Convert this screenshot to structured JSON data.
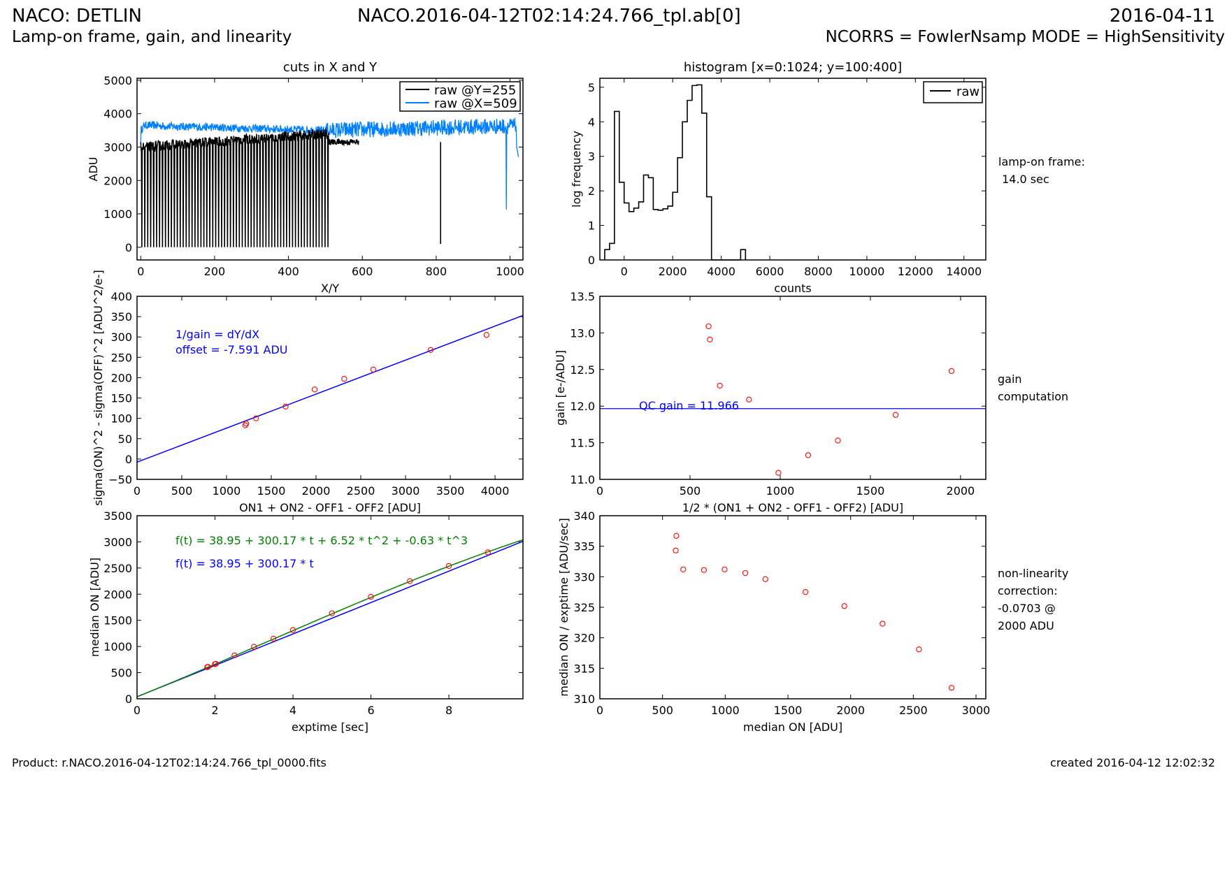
{
  "header": {
    "title_left": "NACO: DETLIN",
    "title_center": "NACO.2016-04-12T02:14:24.766_tpl.ab[0]",
    "title_right": "2016-04-11",
    "subtitle_left": "Lamp-on frame, gain, and linearity",
    "subtitle_right": "NCORRS = FowlerNsamp MODE = HighSensitivity"
  },
  "footer": {
    "product": "Product: r.NACO.2016-04-12T02:14:24.766_tpl_0000.fits",
    "created": "created 2016-04-12 12:02:32"
  },
  "side_notes": {
    "lamp": "lamp-on frame:\n 14.0 sec",
    "gain": "gain\ncomputation",
    "nonlin": "non-linearity\ncorrection:\n-0.0703 @\n2000 ADU"
  },
  "colors": {
    "black_series": "#000000",
    "blue_series": "#0080ff",
    "fit_blue": "#0000ff",
    "fit_green": "#008000",
    "points": "#ff0000"
  },
  "chart_data": [
    {
      "id": "cuts",
      "type": "line",
      "title": "cuts in X and Y",
      "xlabel": "X/Y",
      "ylabel": "ADU",
      "xlim": [
        -10,
        1035
      ],
      "ylim": [
        -380,
        5060
      ],
      "xticks": [
        0,
        200,
        400,
        600,
        800,
        1000
      ],
      "xtick_labels": [
        "0",
        "200",
        "400",
        "600",
        "800",
        "1000"
      ],
      "yticks": [
        0,
        1000,
        2000,
        3000,
        4000,
        5000
      ],
      "ytick_labels": [
        "0",
        "1000",
        "2000",
        "3000",
        "4000",
        "5000"
      ],
      "legend_position": "top-right",
      "series": [
        {
          "name": "raw @Y=255",
          "color": "#000000",
          "description_values": {
            "level_x0_500": [
              3000,
              3400
            ],
            "dropouts_to_0_period": 8,
            "dropouts_until_x": 508,
            "level_x500_1024": 3150,
            "spike_x": 812,
            "spike_min": 100
          }
        },
        {
          "name": "raw @X=509",
          "color": "#0080ff",
          "description_values": {
            "level_start": 3600,
            "level_mid": 3500,
            "level_end": 3600,
            "noise": 300,
            "dip_x": 990,
            "dip_min": 1130
          }
        }
      ]
    },
    {
      "id": "histogram",
      "type": "line",
      "title": "histogram [x=0:1024; y=100:400]",
      "xlabel": "counts",
      "ylabel": "log frequency",
      "xlim": [
        -1000,
        14900
      ],
      "ylim": [
        0,
        5.26
      ],
      "xticks": [
        0,
        2000,
        4000,
        6000,
        8000,
        10000,
        12000,
        14000
      ],
      "xtick_labels": [
        "0",
        "2000",
        "4000",
        "6000",
        "8000",
        "10000",
        "12000",
        "14000"
      ],
      "yticks": [
        0,
        1,
        2,
        3,
        4,
        5
      ],
      "ytick_labels": [
        "0",
        "1",
        "2",
        "3",
        "4",
        "5"
      ],
      "legend_position": "top-right",
      "series": [
        {
          "name": "raw",
          "color": "#000000",
          "bin_edges": [
            -800,
            -600,
            -400,
            -200,
            0,
            200,
            400,
            600,
            800,
            1000,
            1200,
            1400,
            1600,
            1800,
            2000,
            2200,
            2400,
            2600,
            2800,
            3000,
            3200,
            3400,
            3600,
            3800,
            4800,
            5000
          ],
          "values": [
            0.3,
            0.48,
            4.3,
            2.25,
            1.65,
            1.4,
            1.5,
            1.68,
            2.46,
            2.38,
            1.46,
            1.44,
            1.48,
            1.56,
            1.96,
            2.96,
            4.0,
            4.62,
            5.05,
            5.07,
            4.25,
            1.83,
            0,
            0,
            0.3
          ]
        }
      ]
    },
    {
      "id": "gain_fit",
      "type": "scatter",
      "title": "",
      "xlabel": "ON1 + ON2 - OFF1 - OFF2 [ADU]",
      "ylabel": "sigma(ON)^2 - sigma(OFF)^2 [ADU^2/e-]",
      "xlim": [
        0,
        4312
      ],
      "ylim": [
        -50,
        400
      ],
      "xticks": [
        0,
        500,
        1000,
        1500,
        2000,
        2500,
        3000,
        3500,
        4000
      ],
      "xtick_labels": [
        "0",
        "500",
        "1000",
        "1500",
        "2000",
        "2500",
        "3000",
        "3500",
        "4000"
      ],
      "yticks": [
        -50,
        0,
        50,
        100,
        150,
        200,
        250,
        300,
        350,
        400
      ],
      "ytick_labels": [
        "−50",
        "0",
        "50",
        "100",
        "150",
        "200",
        "250",
        "300",
        "350",
        "400"
      ],
      "annotations": [
        "1/gain = dY/dX",
        "offset = -7.591 ADU"
      ],
      "fit_line": {
        "intercept": -7.591,
        "slope": 0.08357,
        "color": "#0000ff"
      },
      "points": {
        "x": [
          1210,
          1220,
          1330,
          1660,
          1985,
          2315,
          2640,
          3280,
          3905
        ],
        "y": [
          83,
          87,
          100,
          129,
          171,
          197,
          220,
          268,
          305
        ],
        "color": "#ff0000"
      }
    },
    {
      "id": "gain_vs",
      "type": "scatter",
      "title": "",
      "xlabel": "1/2 * (ON1 + ON2 - OFF1 - OFF2) [ADU]",
      "ylabel": "gain [e-/ADU]",
      "xlim": [
        0,
        2140
      ],
      "ylim": [
        11.0,
        13.5
      ],
      "xticks": [
        0,
        500,
        1000,
        1500,
        2000
      ],
      "xtick_labels": [
        "0",
        "500",
        "1000",
        "1500",
        "2000"
      ],
      "yticks": [
        11.0,
        11.5,
        12.0,
        12.5,
        13.0,
        13.5
      ],
      "ytick_labels": [
        "11.0",
        "11.5",
        "12.0",
        "12.5",
        "13.0",
        "13.5"
      ],
      "annotations": [
        "QC gain = 11.966"
      ],
      "hline": {
        "y": 11.966,
        "color": "#0000ff"
      },
      "points": {
        "x": [
          603,
          610,
          665,
          827,
          990,
          1155,
          1320,
          1640,
          1950
        ],
        "y": [
          13.09,
          12.91,
          12.28,
          12.09,
          11.09,
          11.33,
          11.53,
          11.88,
          12.48
        ],
        "color": "#ff0000"
      }
    },
    {
      "id": "linearity",
      "type": "scatter",
      "title": "",
      "xlabel": "exptime [sec]",
      "ylabel": "median ON [ADU]",
      "xlim": [
        0,
        9.9
      ],
      "ylim": [
        0,
        3500
      ],
      "xticks": [
        0,
        2,
        4,
        6,
        8
      ],
      "xtick_labels": [
        "0",
        "2",
        "4",
        "6",
        "8"
      ],
      "yticks": [
        0,
        500,
        1000,
        1500,
        2000,
        2500,
        3000,
        3500
      ],
      "ytick_labels": [
        "0",
        "500",
        "1000",
        "1500",
        "2000",
        "2500",
        "3000",
        "3500"
      ],
      "annotations": [
        "f(t) =  38.95 + 300.17 * t +   6.52 * t^2 +  -0.63 * t^3",
        "f(t) =  38.95 + 300.17 * t"
      ],
      "fits": [
        {
          "name": "cubic",
          "coeffs": [
            38.95,
            300.17,
            6.52,
            -0.63
          ],
          "color": "#008000"
        },
        {
          "name": "linear",
          "coeffs": [
            38.95,
            300.17
          ],
          "color": "#0000ff"
        }
      ],
      "points": {
        "x": [
          1.8,
          1.82,
          2.0,
          2.02,
          2.5,
          3.0,
          3.5,
          4.0,
          5.0,
          6.0,
          7.0,
          8.0,
          9.0
        ],
        "y": [
          605,
          610,
          662,
          668,
          830,
          995,
          1150,
          1315,
          1635,
          1950,
          2250,
          2540,
          2800
        ],
        "color": "#ff0000"
      }
    },
    {
      "id": "nonlinearity",
      "type": "scatter",
      "title": "",
      "xlabel": "median ON [ADU]",
      "ylabel": "median ON / exptime [ADU/sec]",
      "xlim": [
        0,
        3078
      ],
      "ylim": [
        310,
        340
      ],
      "xticks": [
        0,
        500,
        1000,
        1500,
        2000,
        2500,
        3000
      ],
      "xtick_labels": [
        "0",
        "500",
        "1000",
        "1500",
        "2000",
        "2500",
        "3000"
      ],
      "yticks": [
        310,
        315,
        320,
        325,
        330,
        335,
        340
      ],
      "ytick_labels": [
        "310",
        "315",
        "320",
        "325",
        "330",
        "335",
        "340"
      ],
      "points": {
        "x": [
          610,
          605,
          665,
          830,
          995,
          1160,
          1320,
          1640,
          1950,
          2255,
          2545,
          2805
        ],
        "y": [
          336.7,
          334.3,
          331.2,
          331.1,
          331.2,
          330.6,
          329.6,
          327.5,
          325.2,
          322.3,
          318.1,
          311.8
        ],
        "color": "#ff0000"
      }
    }
  ]
}
